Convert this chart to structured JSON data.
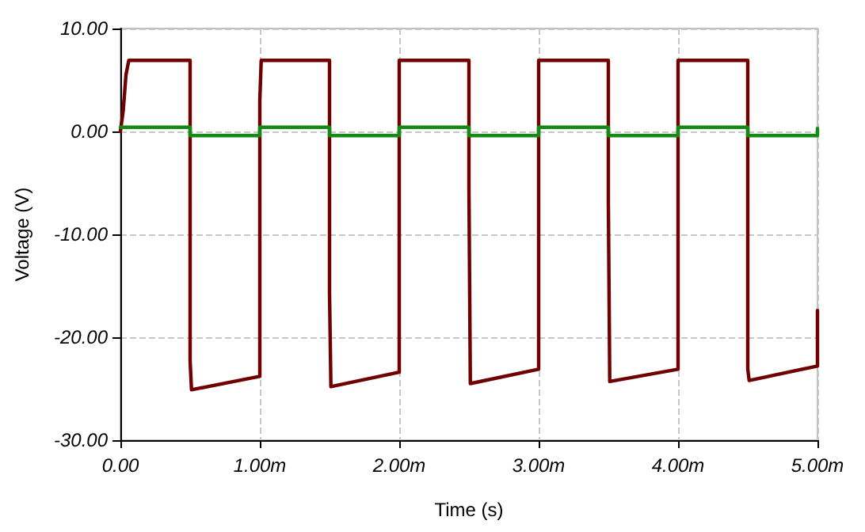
{
  "chart_data": {
    "type": "line",
    "xlabel": "Time (s)",
    "ylabel": "Voltage (V)",
    "xlim": [
      0,
      5
    ],
    "ylim": [
      -30,
      10
    ],
    "xticks": [
      {
        "value": 0,
        "label": "0.00"
      },
      {
        "value": 1,
        "label": "1.00m"
      },
      {
        "value": 2,
        "label": "2.00m"
      },
      {
        "value": 3,
        "label": "3.00m"
      },
      {
        "value": 4,
        "label": "4.00m"
      },
      {
        "value": 5,
        "label": "5.00m"
      }
    ],
    "yticks": [
      {
        "value": -30,
        "label": "-30.00"
      },
      {
        "value": -20,
        "label": "-20.00"
      },
      {
        "value": -10,
        "label": "-10.00"
      },
      {
        "value": 0,
        "label": "0.00"
      },
      {
        "value": 10,
        "label": "10.00"
      }
    ],
    "grid": true,
    "marker": "none",
    "line_style": "solid",
    "series": [
      {
        "color": "#700000",
        "x": [
          0,
          0.02,
          0.04,
          0.06,
          0.5,
          0.5,
          0.51,
          1,
          1,
          1.01,
          1.5,
          1.5,
          1.51,
          2,
          2,
          2.5,
          2.5,
          2.51,
          3,
          3,
          3.5,
          3.5,
          3.51,
          4,
          4,
          4.5,
          4.5,
          4.51,
          5,
          5
        ],
        "values": [
          0,
          2,
          5.5,
          6.9,
          6.9,
          -22.3,
          -25.1,
          -23.8,
          3,
          6.9,
          6.9,
          -15.7,
          -24.8,
          -23.4,
          6.9,
          6.9,
          -5.5,
          -24.5,
          -23.1,
          6.9,
          6.9,
          -6.8,
          -24.3,
          -23.1,
          6.9,
          6.9,
          -23.1,
          -24.2,
          -22.8,
          -17.4
        ]
      },
      {
        "color": "#138a13",
        "x": [
          0,
          0.5,
          0.5,
          1,
          1,
          1.5,
          1.5,
          2,
          2,
          2.5,
          2.5,
          3,
          3,
          3.5,
          3.5,
          4,
          4,
          4.5,
          4.5,
          5,
          5
        ],
        "values": [
          0.4,
          0.4,
          -0.4,
          -0.4,
          0.4,
          0.4,
          -0.4,
          -0.4,
          0.4,
          0.4,
          -0.4,
          -0.4,
          0.4,
          0.4,
          -0.4,
          -0.4,
          0.4,
          0.4,
          -0.4,
          -0.4,
          0.3
        ]
      }
    ]
  }
}
